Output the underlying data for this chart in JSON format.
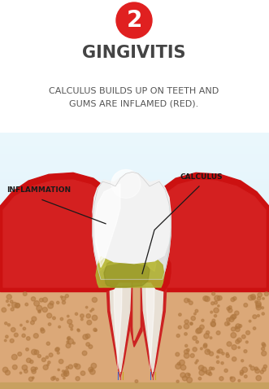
{
  "bg_color": "#ffffff",
  "sky_top": "#d6eef8",
  "sky_bottom": "#b8dff0",
  "circle_color": "#e02020",
  "circle_number": "2",
  "title": "GINGIVITIS",
  "subtitle": "CALCULUS BUILDS UP ON TEETH AND\nGUMS ARE INFLAMED (RED).",
  "label_inflammation": "INFLAMMATION",
  "label_calculus": "CALCULUS",
  "title_color": "#444444",
  "subtitle_color": "#555555",
  "label_color": "#1a1a1a",
  "gum_red": "#cc1111",
  "gum_dark": "#aa0000",
  "bone_color": "#dba878",
  "bone_dot_color": "#b07840",
  "tooth_main": "#f2f2f2",
  "tooth_highlight": "#ffffff",
  "tooth_shadow": "#c8c8c8",
  "calculus_dark": "#909020",
  "calculus_mid": "#b0b030",
  "calculus_light": "#c8c845",
  "root_main": "#e8e0d5",
  "root_dark": "#c8b8a0",
  "pdl_red": "#cc2222",
  "nerve_blue": "#4466cc",
  "nerve_red": "#cc4444",
  "nerve_yellow": "#ccaa22",
  "bottom_strip": "#c8a060"
}
